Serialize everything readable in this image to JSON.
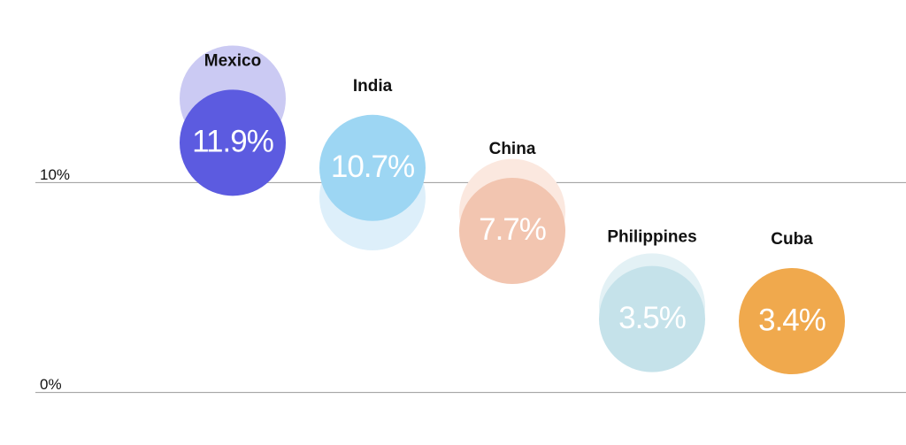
{
  "chart_data": {
    "type": "dot",
    "categories": [
      "Mexico",
      "India",
      "China",
      "Philippines",
      "Cuba"
    ],
    "series": [
      {
        "colors": [
          "#cbcaf3",
          "#ddeffa",
          "#fbe8df",
          "#e3f1f5",
          null
        ],
        "values": [
          14.0,
          9.3,
          8.6,
          4.1,
          null
        ]
      },
      {
        "colors": [
          "#5c5be0",
          "#9dd6f3",
          "#f2c5b0",
          "#c5e2ea",
          "#f0a94d"
        ],
        "values": [
          11.9,
          10.7,
          7.7,
          3.5,
          3.4
        ],
        "value_labels": [
          "11.9%",
          "10.7%",
          "7.7%",
          "3.5%",
          "3.4%"
        ]
      }
    ],
    "ylim": [
      -2.5,
      18.7
    ],
    "yticks": [
      {
        "value": 0,
        "label": "0%"
      },
      {
        "value": 10,
        "label": "10%"
      }
    ],
    "grid": true
  }
}
